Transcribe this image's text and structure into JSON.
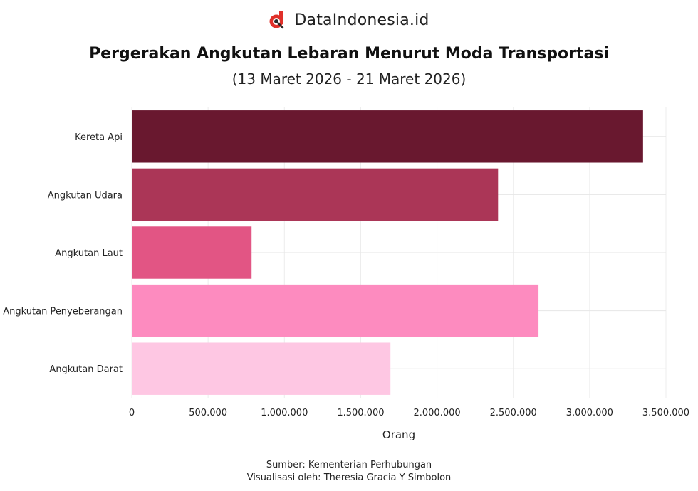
{
  "brand": {
    "name": "DataIndonesia.id",
    "logo_icon": "dataindonesia-logo-icon",
    "accent": "#e0302a"
  },
  "chart_data": {
    "type": "bar",
    "orientation": "horizontal",
    "title": "Pergerakan Angkutan Lebaran Menurut Moda Transportasi",
    "subtitle": "(13 Maret 2026 - 21 Maret 2026)",
    "categories": [
      "Kereta Api",
      "Angkutan Udara",
      "Angkutan Laut",
      "Angkutan Penyeberangan",
      "Angkutan Darat"
    ],
    "values": [
      3350000,
      2400000,
      785000,
      2665000,
      1695000
    ],
    "colors": [
      "#69182f",
      "#ab3657",
      "#e25584",
      "#fd8bbf",
      "#fec7e3"
    ],
    "xlabel": "Orang",
    "ylabel": "",
    "xlim": [
      0,
      3500000
    ],
    "xticks": [
      0,
      500000,
      1000000,
      1500000,
      2000000,
      2500000,
      3000000,
      3500000
    ],
    "xtick_labels": [
      "0",
      "500.000",
      "1.000.000",
      "1.500.000",
      "2.000.000",
      "2.500.000",
      "3.000.000",
      "3.500.000"
    ],
    "grid": true,
    "legend": "none"
  },
  "footer": {
    "source": "Sumber: Kementerian Perhubungan",
    "credit": "Visualisasi oleh: Theresia Gracia Y Simbolon"
  }
}
